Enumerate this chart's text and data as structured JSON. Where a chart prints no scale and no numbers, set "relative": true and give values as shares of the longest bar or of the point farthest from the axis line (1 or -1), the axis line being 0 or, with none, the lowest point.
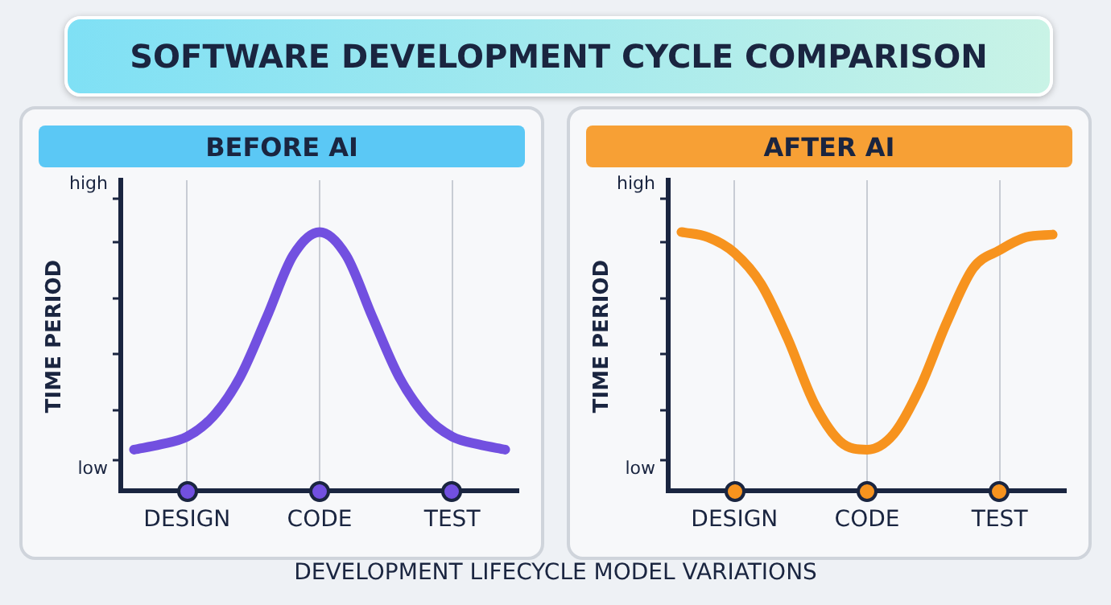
{
  "chart_data": [
    {
      "type": "line",
      "title": "BEFORE AI",
      "ylabel": "TIME PERIOD",
      "marker": "none",
      "grid": "x",
      "line_style": "solid",
      "relative": true,
      "annotations": [
        "SOFTWARE DEVELOPMENT CYCLE COMPARISON",
        "high",
        "low"
      ],
      "categories": [
        null,
        null,
        "DESIGN",
        null,
        null,
        null,
        null,
        "CODE",
        null,
        null,
        null,
        null,
        "TEST",
        null,
        null
      ],
      "series": [
        {
          "color": "#7250e0",
          "values": [
            0.16,
            0.18,
            0.21,
            0.29,
            0.44,
            0.67,
            0.91,
            1,
            0.91,
            0.67,
            0.44,
            0.29,
            0.21,
            0.18,
            0.16
          ]
        }
      ]
    },
    {
      "type": "line",
      "title": "AFTER AI",
      "ylabel": "TIME PERIOD",
      "marker": "none",
      "grid": "x",
      "line_style": "solid",
      "relative": true,
      "annotations": [
        "DEVELOPMENT LIFECYCLE MODEL VARIATIONS",
        "high",
        "low"
      ],
      "categories": [
        null,
        null,
        "DESIGN",
        null,
        null,
        null,
        null,
        "CODE",
        null,
        null,
        null,
        null,
        "TEST",
        null,
        null
      ],
      "series": [
        {
          "color": "#f7931e",
          "values": [
            1,
            0.98,
            0.92,
            0.8,
            0.59,
            0.34,
            0.19,
            0.16,
            0.22,
            0.4,
            0.65,
            0.86,
            0.93,
            0.98,
            0.99
          ]
        }
      ]
    }
  ]
}
